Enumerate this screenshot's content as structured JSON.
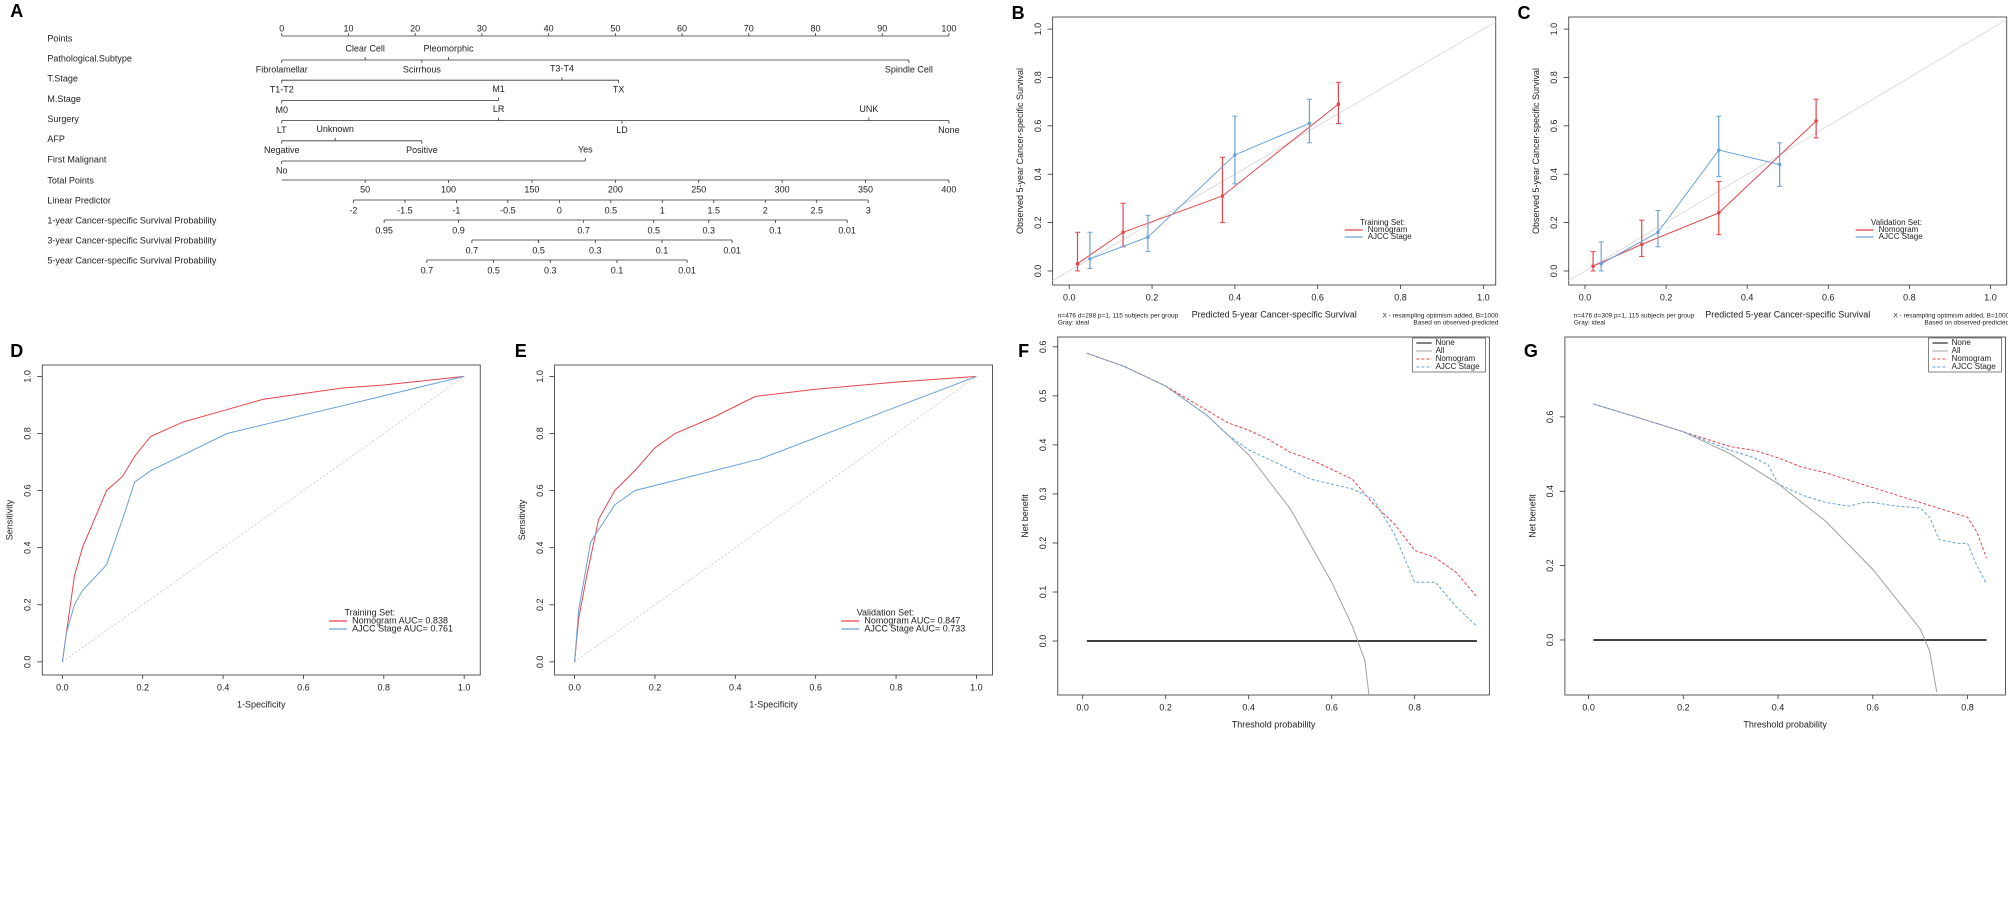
{
  "chart_data": [
    {
      "type": "nomogram",
      "panel": "A",
      "points_axis": {
        "name": "Points",
        "lim": [
          0,
          100
        ],
        "ticks": [
          0,
          10,
          20,
          30,
          40,
          50,
          60,
          70,
          80,
          90,
          100
        ]
      },
      "variables": [
        {
          "name": "Pathological.Subtype",
          "labels": [
            "Fibrolamellar",
            "Clear Cell",
            "Scirrhous",
            "Pleomorphic",
            "Spindle Cell"
          ],
          "points": [
            0,
            12.5,
            21,
            25,
            94
          ]
        },
        {
          "name": "T.Stage",
          "labels": [
            "T1-T2",
            "T3-T4",
            "TX"
          ],
          "points": [
            0,
            42,
            50.5
          ]
        },
        {
          "name": "M.Stage",
          "labels": [
            "M0",
            "M1"
          ],
          "points": [
            0,
            32.5
          ]
        },
        {
          "name": "Surgery",
          "labels": [
            "LT",
            "LR",
            "LD",
            "UNK",
            "None"
          ],
          "points": [
            0,
            32.5,
            51,
            88,
            100
          ]
        },
        {
          "name": "AFP",
          "labels": [
            "Negative",
            "Unknown",
            "Positive"
          ],
          "points": [
            0,
            8,
            21
          ]
        },
        {
          "name": "First Malignant",
          "labels": [
            "No",
            "Yes"
          ],
          "points": [
            0,
            45.5
          ]
        }
      ],
      "total_points": {
        "name": "Total Points",
        "lim": [
          0,
          400
        ],
        "ticks": [
          50,
          100,
          150,
          200,
          250,
          300,
          350,
          400
        ]
      },
      "linear_predictor": {
        "name": "Linear Predictor",
        "lim": [
          -2,
          3
        ],
        "total_points": [
          43,
          351.6
        ],
        "ticks": [
          -2,
          -1.5,
          -1,
          -0.5,
          0,
          0.5,
          1,
          1.5,
          2,
          2.5,
          3
        ]
      },
      "probabilities": [
        {
          "name": "1-year Cancer-specific Survival Probability",
          "labels": [
            0.95,
            0.9,
            0.7,
            0.5,
            0.3,
            0.1,
            0.01
          ],
          "total_points": [
            61.4,
            106,
            181,
            223,
            256,
            296,
            339
          ]
        },
        {
          "name": "3-year Cancer-specific Survival Probability",
          "labels": [
            0.7,
            0.5,
            0.3,
            0.1,
            0.01
          ],
          "total_points": [
            114,
            154,
            188,
            228,
            270
          ]
        },
        {
          "name": "5-year Cancer-specific Survival Probability",
          "labels": [
            0.7,
            0.5,
            0.3,
            0.1,
            0.01
          ],
          "total_points": [
            87,
            127,
            161,
            201,
            243
          ]
        }
      ]
    },
    {
      "type": "calibration",
      "panel": "B",
      "xlabel": "Predicted 5-year Cancer-specific Survival",
      "ylabel": "Observed 5-year Cancer-specific Survival",
      "xlim": [
        -0.04,
        1.03
      ],
      "ylim": [
        -0.058,
        1.05
      ],
      "xticks": [
        {
          "value": 0,
          "label": "0.0"
        },
        0.2,
        0.4,
        0.6,
        0.8,
        {
          "value": 1,
          "label": "1.0"
        }
      ],
      "yticks": [
        {
          "value": 0,
          "label": "0.0"
        },
        0.2,
        0.4,
        0.6,
        0.8,
        {
          "value": 1,
          "label": "1.0"
        }
      ],
      "legend": "bottom right",
      "legend_title": "Training Set:",
      "notes_left": [
        "n=476 d=288 p=1, 115 subjects per group",
        "Gray: ideal"
      ],
      "notes_right": [
        "X - resampling optimism added, B=1000",
        "Based on observed-predicted"
      ],
      "series": [
        {
          "name": "Nomogram",
          "color": "#e5464b",
          "x": [
            0.02,
            0.13,
            0.37,
            0.65
          ],
          "values": [
            0.03,
            0.16,
            0.31,
            0.69
          ],
          "lower": [
            0.0,
            0.1,
            0.2,
            0.61
          ],
          "upper": [
            0.16,
            0.28,
            0.47,
            0.78
          ]
        },
        {
          "name": "AJCC Stage",
          "color": "#6aa2d8",
          "x": [
            0.05,
            0.19,
            0.4,
            0.58
          ],
          "values": [
            0.05,
            0.14,
            0.48,
            0.61
          ],
          "lower": [
            0.01,
            0.08,
            0.36,
            0.53
          ],
          "upper": [
            0.16,
            0.23,
            0.64,
            0.71
          ]
        }
      ]
    },
    {
      "type": "calibration",
      "panel": "C",
      "xlabel": "Predicted 5-year Cancer-specific Survival",
      "ylabel": "Observed 5-year Cancer-specific Survival",
      "xlim": [
        -0.04,
        1.04
      ],
      "ylim": [
        -0.058,
        1.05
      ],
      "xticks": [
        {
          "value": 0,
          "label": "0.0"
        },
        0.2,
        0.4,
        0.6,
        0.8,
        {
          "value": 1,
          "label": "1.0"
        }
      ],
      "yticks": [
        {
          "value": 0,
          "label": "0.0"
        },
        0.2,
        0.4,
        0.6,
        0.8,
        {
          "value": 1,
          "label": "1.0"
        }
      ],
      "legend": "bottom right",
      "legend_title": "Validation Set:",
      "notes_left": [
        "n=476 d=309 p=1, 115 subjects per group",
        "Gray: ideal"
      ],
      "notes_right": [
        "X - resampling optimism added, B=1000",
        "Based on observed-predicted"
      ],
      "series": [
        {
          "name": "Nomogram",
          "color": "#e5464b",
          "x": [
            0.02,
            0.14,
            0.33,
            0.57
          ],
          "values": [
            0.02,
            0.11,
            0.24,
            0.62
          ],
          "lower": [
            0.0,
            0.06,
            0.15,
            0.55
          ],
          "upper": [
            0.08,
            0.21,
            0.37,
            0.71
          ]
        },
        {
          "name": "AJCC Stage",
          "color": "#6aa2d8",
          "x": [
            0.04,
            0.18,
            0.33,
            0.48
          ],
          "values": [
            0.03,
            0.16,
            0.5,
            0.44
          ],
          "lower": [
            0.0,
            0.1,
            0.39,
            0.35
          ],
          "upper": [
            0.12,
            0.25,
            0.64,
            0.53
          ]
        }
      ]
    },
    {
      "type": "line",
      "panel": "D",
      "xlabel": "1-Specificity",
      "ylabel": "Sensitivity",
      "xlim": [
        -0.05,
        1.04
      ],
      "ylim": [
        -0.046,
        1.04
      ],
      "xticks": [
        {
          "value": 0,
          "label": "0.0"
        },
        0.2,
        0.4,
        0.6,
        0.8,
        {
          "value": 1,
          "label": "1.0"
        }
      ],
      "yticks": [
        {
          "value": 0,
          "label": "0.0"
        },
        0.2,
        0.4,
        0.6,
        0.8,
        {
          "value": 1,
          "label": "1.0"
        }
      ],
      "diagonal": "dashed",
      "legend": "bottom right",
      "legend_title": "Training Set:",
      "series": [
        {
          "name": "Nomogram AUC= 0.838",
          "color": "#e5464b",
          "dash": "solid",
          "x": [
            0,
            0.01,
            0.02,
            0.03,
            0.05,
            0.08,
            0.11,
            0.15,
            0.18,
            0.22,
            0.3,
            0.4,
            0.5,
            0.6,
            0.7,
            0.8,
            0.9,
            1
          ],
          "values": [
            0,
            0.1,
            0.2,
            0.3,
            0.4,
            0.5,
            0.6,
            0.65,
            0.72,
            0.79,
            0.84,
            0.88,
            0.92,
            0.94,
            0.96,
            0.97,
            0.985,
            1
          ]
        },
        {
          "name": "AJCC Stage AUC= 0.761",
          "color": "#6aa2d8",
          "dash": "solid",
          "x": [
            0,
            0.01,
            0.03,
            0.05,
            0.11,
            0.15,
            0.18,
            0.22,
            0.41,
            1
          ],
          "values": [
            0,
            0.1,
            0.2,
            0.25,
            0.34,
            0.5,
            0.63,
            0.67,
            0.8,
            1
          ]
        }
      ]
    },
    {
      "type": "line",
      "panel": "E",
      "xlabel": "1-Specificity",
      "ylabel": "Sensitivity",
      "xlim": [
        -0.05,
        1.04
      ],
      "ylim": [
        -0.046,
        1.04
      ],
      "xticks": [
        {
          "value": 0,
          "label": "0.0"
        },
        0.2,
        0.4,
        0.6,
        0.8,
        {
          "value": 1,
          "label": "1.0"
        }
      ],
      "yticks": [
        {
          "value": 0,
          "label": "0.0"
        },
        0.2,
        0.4,
        0.6,
        0.8,
        {
          "value": 1,
          "label": "1.0"
        }
      ],
      "diagonal": "dashed",
      "legend": "bottom right",
      "legend_title": "Validation Set:",
      "series": [
        {
          "name": "Nomogram AUC= 0.847",
          "color": "#e5464b",
          "dash": "solid",
          "x": [
            0,
            0.01,
            0.03,
            0.06,
            0.1,
            0.15,
            0.2,
            0.25,
            0.35,
            0.45,
            0.6,
            0.8,
            1
          ],
          "values": [
            0,
            0.15,
            0.3,
            0.5,
            0.6,
            0.67,
            0.75,
            0.8,
            0.86,
            0.93,
            0.955,
            0.98,
            1
          ]
        },
        {
          "name": "AJCC Stage AUC= 0.733",
          "color": "#6aa2d8",
          "dash": "solid",
          "x": [
            0,
            0.01,
            0.04,
            0.1,
            0.15,
            0.46,
            1
          ],
          "values": [
            0,
            0.18,
            0.42,
            0.55,
            0.6,
            0.71,
            1
          ]
        }
      ]
    },
    {
      "type": "line",
      "panel": "F",
      "xlabel": "Threshold probability",
      "ylabel": "Net benefit",
      "xlim": [
        -0.06,
        0.98
      ],
      "ylim": [
        -0.11,
        0.62
      ],
      "xticks": [
        {
          "value": 0,
          "label": "0.0"
        },
        0.2,
        0.4,
        0.6,
        0.8
      ],
      "yticks": [
        {
          "value": 0,
          "label": "0.0"
        },
        0.1,
        0.2,
        0.3,
        0.4,
        0.5,
        0.6
      ],
      "legend": "top right",
      "series": [
        {
          "name": "None",
          "color": "#000000",
          "dash": "solid",
          "x": [
            0.01,
            0.95
          ],
          "values": [
            0,
            0
          ]
        },
        {
          "name": "All",
          "color": "#a0a0a0",
          "dash": "solid",
          "x": [
            0.01,
            0.1,
            0.2,
            0.3,
            0.4,
            0.5,
            0.6,
            0.65,
            0.68,
            0.69
          ],
          "values": [
            0.587,
            0.56,
            0.52,
            0.46,
            0.38,
            0.27,
            0.12,
            0.03,
            -0.04,
            -0.11
          ]
        },
        {
          "name": "Nomogram",
          "color": "#e5464b",
          "dash": "dashed",
          "x": [
            0.01,
            0.1,
            0.2,
            0.3,
            0.35,
            0.4,
            0.45,
            0.5,
            0.55,
            0.6,
            0.65,
            0.7,
            0.75,
            0.8,
            0.85,
            0.9,
            0.95
          ],
          "values": [
            0.587,
            0.56,
            0.52,
            0.47,
            0.445,
            0.43,
            0.41,
            0.385,
            0.37,
            0.35,
            0.33,
            0.28,
            0.24,
            0.185,
            0.17,
            0.14,
            0.09
          ]
        },
        {
          "name": "AJCC Stage",
          "color": "#6aa2d8",
          "dash": "dashed",
          "x": [
            0.01,
            0.1,
            0.2,
            0.3,
            0.35,
            0.4,
            0.45,
            0.5,
            0.55,
            0.6,
            0.65,
            0.7,
            0.75,
            0.78,
            0.8,
            0.85,
            0.9,
            0.95
          ],
          "values": [
            0.587,
            0.56,
            0.52,
            0.46,
            0.42,
            0.39,
            0.37,
            0.35,
            0.33,
            0.32,
            0.31,
            0.29,
            0.22,
            0.16,
            0.12,
            0.12,
            0.07,
            0.03
          ]
        }
      ]
    },
    {
      "type": "line",
      "panel": "G",
      "xlabel": "Threshold probability",
      "ylabel": "Net benefit",
      "xlim": [
        -0.05,
        0.88
      ],
      "ylim": [
        -0.148,
        0.815
      ],
      "xticks": [
        {
          "value": 0,
          "label": "0.0"
        },
        0.2,
        0.4,
        0.6,
        0.8
      ],
      "yticks": [
        {
          "value": 0,
          "label": "0.0"
        },
        0.2,
        0.4,
        0.6
      ],
      "legend": "top right",
      "series": [
        {
          "name": "None",
          "color": "#000000",
          "dash": "solid",
          "x": [
            0.01,
            0.84
          ],
          "values": [
            0,
            0
          ]
        },
        {
          "name": "All",
          "color": "#a0a0a0",
          "dash": "solid",
          "x": [
            0.01,
            0.1,
            0.2,
            0.3,
            0.4,
            0.5,
            0.6,
            0.7,
            0.72,
            0.735
          ],
          "values": [
            0.635,
            0.6,
            0.56,
            0.5,
            0.42,
            0.32,
            0.19,
            0.03,
            -0.03,
            -0.14
          ]
        },
        {
          "name": "Nomogram",
          "color": "#e5464b",
          "dash": "dashed",
          "x": [
            0.01,
            0.1,
            0.2,
            0.3,
            0.35,
            0.4,
            0.45,
            0.5,
            0.55,
            0.6,
            0.65,
            0.7,
            0.75,
            0.8,
            0.82,
            0.84
          ],
          "values": [
            0.635,
            0.6,
            0.56,
            0.52,
            0.51,
            0.49,
            0.465,
            0.45,
            0.43,
            0.41,
            0.39,
            0.37,
            0.35,
            0.33,
            0.29,
            0.22
          ]
        },
        {
          "name": "AJCC Stage",
          "color": "#6aa2d8",
          "dash": "dashed",
          "x": [
            0.01,
            0.1,
            0.2,
            0.3,
            0.35,
            0.38,
            0.4,
            0.45,
            0.5,
            0.55,
            0.58,
            0.6,
            0.65,
            0.7,
            0.72,
            0.74,
            0.78,
            0.8,
            0.82,
            0.84
          ],
          "values": [
            0.635,
            0.6,
            0.56,
            0.51,
            0.49,
            0.47,
            0.42,
            0.39,
            0.37,
            0.36,
            0.37,
            0.37,
            0.36,
            0.355,
            0.33,
            0.27,
            0.26,
            0.26,
            0.2,
            0.15
          ]
        }
      ]
    }
  ]
}
